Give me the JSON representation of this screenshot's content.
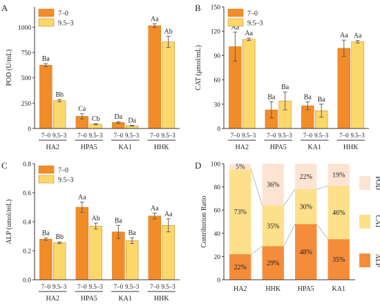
{
  "colors": {
    "series_a": "#f28c28",
    "series_b": "#fcd86a",
    "bar_edge": "#c8720f",
    "alp": "#f48c3a",
    "cat": "#fde08a",
    "pod": "#fde4d2",
    "connector": "#aaaaaa"
  },
  "chart_data": [
    {
      "panel": "A",
      "type": "bar",
      "ylabel": "POD (U/mL)",
      "ylim": [
        0,
        1200
      ],
      "yticks": [
        0,
        250,
        500,
        750,
        1000
      ],
      "categories": [
        "HA2",
        "HPA5",
        "KA1",
        "HHK"
      ],
      "sublabels": [
        "7–0",
        "9.5–3"
      ],
      "legend": [
        "7–0",
        "9.5–3"
      ],
      "series": [
        {
          "name": "7–0",
          "values": [
            625,
            120,
            60,
            1015
          ],
          "errors": [
            15,
            25,
            8,
            18
          ],
          "sig": [
            "Ba",
            "Ca",
            "Da",
            "Aa"
          ]
        },
        {
          "name": "9.5–3",
          "values": [
            275,
            42,
            27,
            855
          ],
          "errors": [
            12,
            6,
            4,
            55
          ],
          "sig": [
            "Bb",
            "Cb",
            "Da",
            "Ab"
          ]
        }
      ]
    },
    {
      "panel": "B",
      "type": "bar",
      "ylabel": "CAT (μmol/mL)",
      "ylim": [
        0,
        150
      ],
      "yticks": [
        0,
        30,
        60,
        90,
        120,
        150
      ],
      "categories": [
        "HA2",
        "HPA5",
        "KA1",
        "HHK"
      ],
      "sublabels": [
        "7–0",
        "9.5–3"
      ],
      "legend": [
        "7–0",
        "9.5–3"
      ],
      "series": [
        {
          "name": "7–0",
          "values": [
            101,
            23,
            28,
            99
          ],
          "errors": [
            18,
            10,
            5,
            10
          ],
          "sig": [
            "Aa",
            "Ba",
            "Ba",
            "Aa"
          ]
        },
        {
          "name": "9.5–3",
          "values": [
            110,
            34,
            22,
            107
          ],
          "errors": [
            1.5,
            11,
            8,
            1.5
          ],
          "sig": [
            "Aa",
            "Ba",
            "Ba",
            "Aa"
          ]
        }
      ]
    },
    {
      "panel": "C",
      "type": "bar",
      "ylabel": "ALP (umol/mL)",
      "ylim": [
        0,
        0.8
      ],
      "yticks": [
        0,
        0.2,
        0.4,
        0.6,
        0.8
      ],
      "ytick_labels": [
        "0.0",
        "0.2",
        "0.4",
        "0.6",
        "0.8"
      ],
      "categories": [
        "HA2",
        "HPA5",
        "KA1",
        "HHK"
      ],
      "sublabels": [
        "7–0",
        "9.5–3"
      ],
      "legend": [
        "7–0",
        "9.5–3"
      ],
      "series": [
        {
          "name": "7–0",
          "values": [
            0.28,
            0.5,
            0.33,
            0.44
          ],
          "errors": [
            0.008,
            0.035,
            0.045,
            0.02
          ],
          "sig": [
            "Ba",
            "Aa",
            "Ba",
            "Aa"
          ]
        },
        {
          "name": "9.5–3",
          "values": [
            0.255,
            0.37,
            0.27,
            0.375
          ],
          "errors": [
            0.006,
            0.02,
            0.02,
            0.045
          ],
          "sig": [
            "Bb",
            "Ab",
            "Ba",
            "Aa"
          ]
        }
      ]
    },
    {
      "panel": "D",
      "type": "bar",
      "stacked": true,
      "ylabel": "Contribution Ratio",
      "ylim": [
        0,
        100
      ],
      "yticks": [
        0,
        20,
        40,
        60,
        80,
        100
      ],
      "categories": [
        "HA2",
        "HHK",
        "HPA5",
        "KA1"
      ],
      "legend": [
        "POD",
        "CAT",
        "ALP"
      ],
      "series": [
        {
          "name": "ALP",
          "values": [
            22,
            29,
            48,
            35
          ],
          "labels": [
            "22%",
            "29%",
            "48%",
            "35%"
          ]
        },
        {
          "name": "CAT",
          "values": [
            73,
            35,
            30,
            46
          ],
          "labels": [
            "73%",
            "35%",
            "30%",
            "46%"
          ]
        },
        {
          "name": "POD",
          "values": [
            5,
            36,
            22,
            19
          ],
          "labels": [
            "5%",
            "36%",
            "22%",
            "19%"
          ]
        }
      ]
    }
  ]
}
